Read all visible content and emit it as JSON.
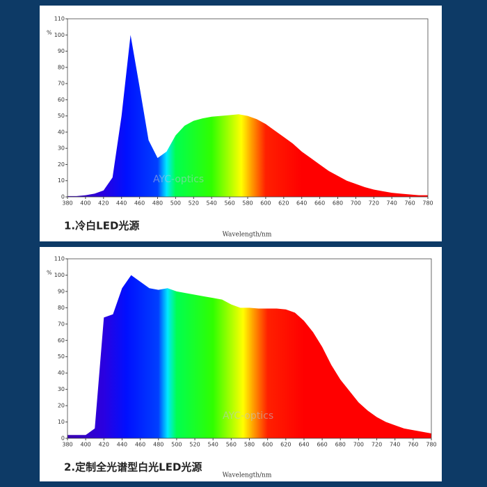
{
  "chart_data": [
    {
      "type": "area",
      "caption": "1.冷白LED光源",
      "x_label": "Wavelength/nm",
      "y_label": "%",
      "watermark": "AYC-optics",
      "x": [
        380,
        390,
        400,
        410,
        420,
        430,
        440,
        450,
        460,
        470,
        480,
        490,
        500,
        510,
        520,
        530,
        540,
        550,
        560,
        570,
        580,
        590,
        600,
        610,
        620,
        630,
        640,
        650,
        660,
        670,
        680,
        690,
        700,
        710,
        720,
        730,
        740,
        750,
        760,
        770,
        780
      ],
      "values": [
        0.5,
        0.5,
        1,
        2,
        4,
        12,
        50,
        100,
        68,
        35,
        24,
        28,
        38,
        44,
        47,
        48.5,
        49.5,
        50,
        50.5,
        51,
        50,
        48,
        45,
        41,
        37,
        33,
        28,
        24,
        20,
        16,
        13,
        10,
        8,
        6,
        4.5,
        3.5,
        2.5,
        2,
        1.5,
        1,
        1
      ],
      "xlim": [
        380,
        780
      ],
      "ylim": [
        0,
        110
      ],
      "xticks": [
        380,
        400,
        420,
        440,
        460,
        480,
        500,
        520,
        540,
        560,
        580,
        600,
        620,
        640,
        660,
        680,
        700,
        720,
        740,
        760,
        780
      ],
      "yticks": [
        0,
        10,
        20,
        30,
        40,
        50,
        60,
        70,
        80,
        90,
        100,
        110
      ]
    },
    {
      "type": "area",
      "caption": "2.定制全光谱型白光LED光源",
      "x_label": "Wavelength/nm",
      "y_label": "%",
      "watermark": "AYC-optics",
      "x": [
        380,
        390,
        400,
        410,
        420,
        430,
        440,
        450,
        460,
        470,
        480,
        490,
        500,
        510,
        520,
        530,
        540,
        550,
        560,
        570,
        580,
        590,
        600,
        610,
        620,
        630,
        640,
        650,
        660,
        670,
        680,
        690,
        700,
        710,
        720,
        730,
        740,
        750,
        760,
        770,
        780
      ],
      "values": [
        2,
        2,
        2,
        6,
        74,
        76,
        92,
        100,
        96,
        92,
        91,
        92,
        90,
        89,
        88,
        87,
        86,
        85,
        82,
        80,
        80,
        79.5,
        79.5,
        79.5,
        79,
        77,
        72,
        65,
        56,
        45,
        36,
        29,
        22,
        17,
        13,
        10,
        8,
        6,
        5,
        4,
        3
      ],
      "xlim": [
        380,
        780
      ],
      "ylim": [
        0,
        110
      ],
      "xticks": [
        380,
        400,
        420,
        440,
        460,
        480,
        500,
        520,
        540,
        560,
        580,
        600,
        620,
        640,
        660,
        680,
        700,
        720,
        740,
        760,
        780
      ],
      "yticks": [
        0,
        10,
        20,
        30,
        40,
        50,
        60,
        70,
        80,
        90,
        100,
        110
      ]
    }
  ]
}
